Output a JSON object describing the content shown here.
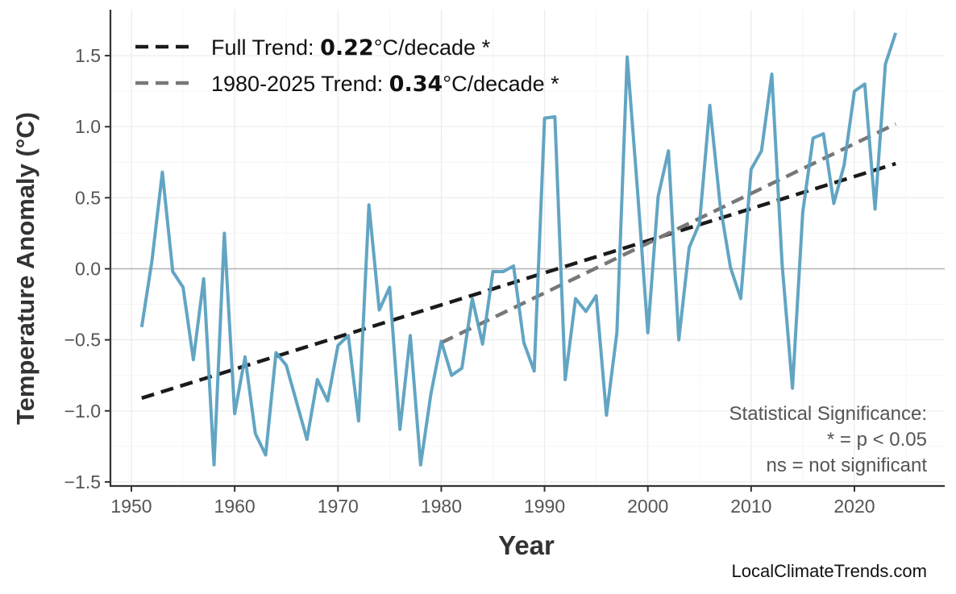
{
  "chart_data": {
    "type": "line",
    "xlabel": "Year",
    "ylabel": "Temperature Anomaly (°C)",
    "xlim": [
      1947.9,
      2028.6
    ],
    "ylim": [
      -1.57,
      1.8
    ],
    "xticks": [
      1950,
      1960,
      1970,
      1980,
      1990,
      2000,
      2010,
      2020
    ],
    "yticks": [
      -1.5,
      -1.0,
      -0.5,
      0.0,
      0.5,
      1.0,
      1.5
    ],
    "ytick_labels": [
      "−1.5",
      "−1.0",
      "−0.5",
      "0.0",
      "0.5",
      "1.0",
      "1.5"
    ],
    "grid": true,
    "zero_line": true,
    "legend_position": "top-left",
    "series": [
      {
        "color": "#5aa0c0",
        "x": [
          1951,
          1952,
          1953,
          1954,
          1955,
          1956,
          1957,
          1958,
          1959,
          1960,
          1961,
          1962,
          1963,
          1964,
          1965,
          1966,
          1967,
          1968,
          1969,
          1970,
          1971,
          1972,
          1973,
          1974,
          1975,
          1976,
          1977,
          1978,
          1979,
          1980,
          1981,
          1982,
          1983,
          1984,
          1985,
          1986,
          1987,
          1988,
          1989,
          1990,
          1991,
          1992,
          1993,
          1994,
          1995,
          1996,
          1997,
          1998,
          1999,
          2000,
          2001,
          2002,
          2003,
          2004,
          2005,
          2006,
          2007,
          2008,
          2009,
          2010,
          2011,
          2012,
          2013,
          2014,
          2015,
          2016,
          2017,
          2018,
          2019,
          2020,
          2021,
          2022,
          2023,
          2024
        ],
        "y": [
          -0.41,
          0.06,
          0.68,
          -0.02,
          -0.13,
          -0.64,
          -0.07,
          -1.38,
          0.25,
          -1.02,
          -0.62,
          -1.16,
          -1.31,
          -0.59,
          -0.68,
          -0.94,
          -1.2,
          -0.78,
          -0.93,
          -0.54,
          -0.47,
          -1.07,
          0.45,
          -0.29,
          -0.13,
          -1.13,
          -0.47,
          -1.38,
          -0.88,
          -0.51,
          -0.75,
          -0.7,
          -0.21,
          -0.53,
          -0.02,
          -0.02,
          0.02,
          -0.52,
          -0.72,
          1.06,
          1.07,
          -0.78,
          -0.21,
          -0.3,
          -0.19,
          -1.03,
          -0.45,
          1.49,
          0.55,
          -0.45,
          0.51,
          0.83,
          -0.5,
          0.15,
          0.32,
          1.15,
          0.45,
          0.01,
          -0.21,
          0.7,
          0.83,
          1.37,
          0.03,
          -0.84,
          0.4,
          0.92,
          0.95,
          0.46,
          0.73,
          1.25,
          1.3,
          0.42,
          1.44,
          1.66
        ]
      }
    ],
    "trends": [
      {
        "prefix": "Full Trend: ",
        "value": "0.22",
        "suffix": "°C/decade *",
        "color": "#1a1a1a",
        "x": [
          1951,
          2024
        ],
        "y": [
          -0.91,
          0.74
        ]
      },
      {
        "prefix": "1980-2025 Trend: ",
        "value": "0.34",
        "suffix": "°C/decade *",
        "color": "#777777",
        "x": [
          1980,
          2024
        ],
        "y": [
          -0.52,
          1.02
        ]
      }
    ],
    "annotation": [
      "Statistical Significance:",
      "* = p < 0.05",
      "ns = not significant"
    ]
  },
  "watermark": "LocalClimateTrends.com"
}
